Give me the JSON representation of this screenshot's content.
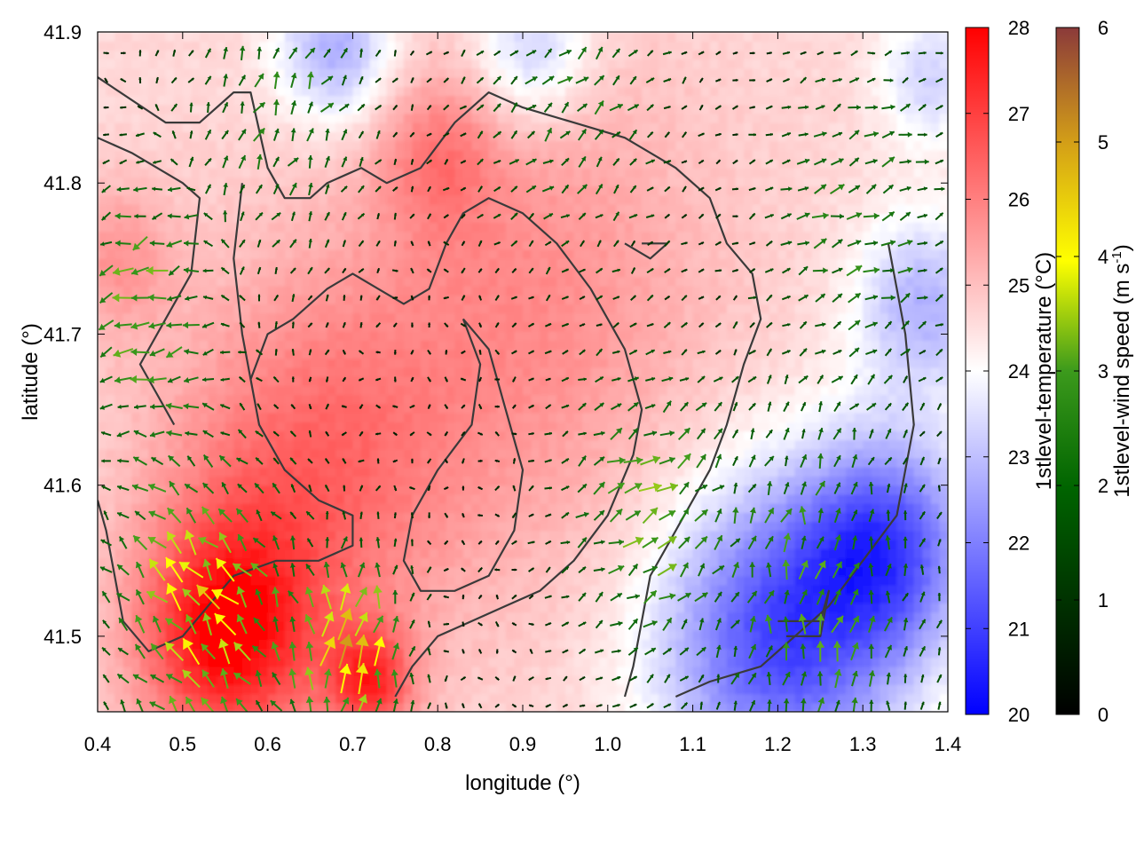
{
  "chart_data": {
    "type": "heatmap",
    "title": "",
    "xlabel": "longitude (°)",
    "ylabel": "latitude (°)",
    "xlim": [
      0.4,
      1.4
    ],
    "ylim": [
      41.45,
      41.9
    ],
    "x_ticks": [
      "0.4",
      "0.5",
      "0.6",
      "0.7",
      "0.8",
      "0.9",
      "1.0",
      "1.1",
      "1.2",
      "1.3",
      "1.4"
    ],
    "y_ticks": [
      "41.5",
      "41.6",
      "41.7",
      "41.8",
      "41.9"
    ],
    "colorbars": [
      {
        "label": "1stlevel-temperature (°C)",
        "range": [
          20,
          28
        ],
        "ticks": [
          "20",
          "21",
          "22",
          "23",
          "24",
          "25",
          "26",
          "27",
          "28"
        ],
        "colors": [
          "#0000ff",
          "#ffffff",
          "#ff0000"
        ]
      },
      {
        "label_main": "1stlevel-wind speed (m s",
        "label_sup": "-1",
        "label_end": ")",
        "range": [
          0,
          6
        ],
        "ticks": [
          "0",
          "1",
          "2",
          "3",
          "4",
          "5",
          "6"
        ],
        "colors": [
          "#000000",
          "#006400",
          "#228b22",
          "#ffff00",
          "#daa520",
          "#8b3a3a"
        ]
      }
    ],
    "temperature_field": {
      "background": 24.6,
      "features": [
        {
          "lon": 0.64,
          "lat": 41.6,
          "temp": 26.3,
          "spread": 0.17
        },
        {
          "lon": 0.9,
          "lat": 41.72,
          "temp": 25.8,
          "spread": 0.22
        },
        {
          "lon": 0.55,
          "lat": 41.5,
          "temp": 27.6,
          "spread": 0.1
        },
        {
          "lon": 0.72,
          "lat": 41.47,
          "temp": 27.0,
          "spread": 0.05
        },
        {
          "lon": 0.42,
          "lat": 41.75,
          "temp": 25.6,
          "spread": 0.07
        },
        {
          "lon": 0.8,
          "lat": 41.82,
          "temp": 25.6,
          "spread": 0.07
        },
        {
          "lon": 1.2,
          "lat": 41.5,
          "temp": 21.2,
          "spread": 0.14
        },
        {
          "lon": 1.33,
          "lat": 41.56,
          "temp": 21.6,
          "spread": 0.1
        },
        {
          "lon": 1.37,
          "lat": 41.72,
          "temp": 22.8,
          "spread": 0.08
        },
        {
          "lon": 0.68,
          "lat": 41.89,
          "temp": 22.6,
          "spread": 0.07
        },
        {
          "lon": 0.91,
          "lat": 41.89,
          "temp": 23.0,
          "spread": 0.07
        },
        {
          "lon": 1.38,
          "lat": 41.87,
          "temp": 23.3,
          "spread": 0.06
        }
      ]
    },
    "wind_field": {
      "grid_step_deg": 0.02,
      "base_speed": 0.35,
      "regions": [
        {
          "lon": 0.45,
          "lat": 41.72,
          "speed": 2.3,
          "dir_deg": 200,
          "spread": 0.08
        },
        {
          "lon": 0.52,
          "lat": 41.52,
          "speed": 3.4,
          "dir_deg": 130,
          "spread": 0.1
        },
        {
          "lon": 0.7,
          "lat": 41.49,
          "speed": 3.9,
          "dir_deg": 80,
          "spread": 0.06
        },
        {
          "lon": 1.05,
          "lat": 41.58,
          "speed": 2.2,
          "dir_deg": 30,
          "spread": 0.09
        },
        {
          "lon": 1.25,
          "lat": 41.52,
          "speed": 2.0,
          "dir_deg": 80,
          "spread": 0.12
        },
        {
          "lon": 1.3,
          "lat": 41.78,
          "speed": 1.7,
          "dir_deg": 20,
          "spread": 0.1
        },
        {
          "lon": 0.62,
          "lat": 41.86,
          "speed": 1.6,
          "dir_deg": 60,
          "spread": 0.1
        },
        {
          "lon": 0.96,
          "lat": 41.86,
          "speed": 1.4,
          "dir_deg": 40,
          "spread": 0.1
        }
      ]
    },
    "contours_level_deg_c": 25,
    "contours": [
      [
        [
          0.4,
          41.87
        ],
        [
          0.48,
          41.84
        ],
        [
          0.52,
          41.84
        ],
        [
          0.56,
          41.86
        ],
        [
          0.58,
          41.86
        ],
        [
          0.6,
          41.81
        ],
        [
          0.62,
          41.79
        ],
        [
          0.65,
          41.79
        ],
        [
          0.67,
          41.8
        ],
        [
          0.71,
          41.81
        ],
        [
          0.74,
          41.8
        ],
        [
          0.78,
          41.81
        ],
        [
          0.82,
          41.84
        ],
        [
          0.86,
          41.86
        ],
        [
          0.9,
          41.85
        ],
        [
          0.96,
          41.84
        ],
        [
          1.02,
          41.83
        ],
        [
          1.08,
          41.81
        ],
        [
          1.12,
          41.79
        ],
        [
          1.14,
          41.76
        ],
        [
          1.17,
          41.74
        ],
        [
          1.18,
          41.71
        ],
        [
          1.16,
          41.68
        ],
        [
          1.14,
          41.64
        ],
        [
          1.12,
          41.61
        ],
        [
          1.09,
          41.58
        ],
        [
          1.07,
          41.56
        ],
        [
          1.05,
          41.54
        ],
        [
          1.04,
          41.51
        ],
        [
          1.03,
          41.48
        ],
        [
          1.02,
          41.46
        ]
      ],
      [
        [
          0.4,
          41.83
        ],
        [
          0.44,
          41.82
        ],
        [
          0.47,
          41.81
        ],
        [
          0.5,
          41.8
        ],
        [
          0.52,
          41.79
        ],
        [
          0.51,
          41.74
        ],
        [
          0.48,
          41.71
        ],
        [
          0.46,
          41.69
        ],
        [
          0.45,
          41.68
        ],
        [
          0.47,
          41.66
        ],
        [
          0.49,
          41.64
        ]
      ],
      [
        [
          0.57,
          41.8
        ],
        [
          0.56,
          41.75
        ],
        [
          0.57,
          41.7
        ],
        [
          0.59,
          41.64
        ],
        [
          0.62,
          41.61
        ],
        [
          0.66,
          41.59
        ],
        [
          0.7,
          41.58
        ],
        [
          0.7,
          41.56
        ],
        [
          0.66,
          41.55
        ],
        [
          0.61,
          41.55
        ],
        [
          0.56,
          41.54
        ],
        [
          0.53,
          41.52
        ],
        [
          0.5,
          41.5
        ],
        [
          0.46,
          41.49
        ],
        [
          0.43,
          41.51
        ],
        [
          0.42,
          41.54
        ],
        [
          0.41,
          41.57
        ],
        [
          0.4,
          41.59
        ]
      ],
      [
        [
          0.58,
          41.67
        ],
        [
          0.6,
          41.7
        ],
        [
          0.63,
          41.71
        ],
        [
          0.67,
          41.73
        ],
        [
          0.7,
          41.74
        ],
        [
          0.73,
          41.73
        ],
        [
          0.76,
          41.72
        ],
        [
          0.79,
          41.73
        ],
        [
          0.81,
          41.76
        ],
        [
          0.83,
          41.78
        ],
        [
          0.86,
          41.79
        ],
        [
          0.9,
          41.78
        ],
        [
          0.94,
          41.76
        ],
        [
          0.98,
          41.73
        ],
        [
          1.02,
          41.69
        ],
        [
          1.04,
          41.65
        ],
        [
          1.03,
          41.62
        ],
        [
          1.0,
          41.58
        ],
        [
          0.96,
          41.55
        ],
        [
          0.92,
          41.53
        ],
        [
          0.88,
          41.52
        ],
        [
          0.84,
          41.51
        ],
        [
          0.8,
          41.5
        ],
        [
          0.77,
          41.48
        ],
        [
          0.75,
          41.46
        ]
      ],
      [
        [
          0.83,
          41.71
        ],
        [
          0.85,
          41.68
        ],
        [
          0.84,
          41.64
        ],
        [
          0.8,
          41.61
        ],
        [
          0.77,
          41.58
        ],
        [
          0.76,
          41.55
        ],
        [
          0.78,
          41.53
        ],
        [
          0.82,
          41.53
        ],
        [
          0.86,
          41.54
        ],
        [
          0.89,
          41.57
        ],
        [
          0.9,
          41.61
        ],
        [
          0.88,
          41.65
        ],
        [
          0.86,
          41.69
        ],
        [
          0.83,
          41.71
        ]
      ],
      [
        [
          1.33,
          41.76
        ],
        [
          1.35,
          41.7
        ],
        [
          1.36,
          41.64
        ],
        [
          1.34,
          41.58
        ],
        [
          1.3,
          41.55
        ],
        [
          1.26,
          41.52
        ],
        [
          1.22,
          41.5
        ],
        [
          1.18,
          41.48
        ],
        [
          1.12,
          41.47
        ],
        [
          1.08,
          41.46
        ]
      ],
      [
        [
          1.02,
          41.76
        ],
        [
          1.05,
          41.75
        ],
        [
          1.07,
          41.76
        ],
        [
          1.04,
          41.76
        ]
      ],
      [
        [
          1.2,
          41.51
        ],
        [
          1.25,
          41.51
        ],
        [
          1.26,
          41.53
        ],
        [
          1.25,
          41.5
        ],
        [
          1.21,
          41.5
        ]
      ]
    ]
  }
}
